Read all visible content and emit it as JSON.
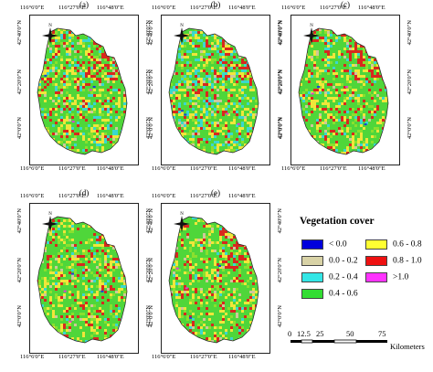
{
  "panels": [
    {
      "id": "a",
      "label": "(a)",
      "top_ticks": [
        "116°6'0\"E",
        "116°27'0\"E",
        "116°48'0\"E"
      ],
      "bottom_ticks": [
        "116°6'0\"E",
        "116°27'0\"E",
        "116°48'0\"E"
      ],
      "left_ticks": [
        "42°40'0\"N",
        "42°20'0\"N",
        "42°0'0\"N"
      ],
      "right_ticks": [
        "42°40'0\"N",
        "42°20'0\"N",
        "42°0'0\"N"
      ]
    },
    {
      "id": "b",
      "label": "(b)",
      "top_ticks": [
        "116°6'0\"E",
        "116°27'0\"E",
        "116°48'0\"E"
      ],
      "bottom_ticks": [
        "116°6'0\"E",
        "116°27'0\"E",
        "116°48'0\"E"
      ],
      "left_ticks": [
        "42°40'0\"N",
        "42°20'0\"N",
        "42°0'0\"N"
      ],
      "right_ticks": [
        "42°40'0\"N",
        "42°20'0\"N",
        "42°0'0\"N"
      ]
    },
    {
      "id": "c",
      "label": "(c)",
      "top_ticks": [
        "116°6'0\"E",
        "116°27'0\"E",
        "116°48'0\"E"
      ],
      "bottom_ticks": [
        "116°6'0\"E",
        "116°27'0\"E",
        "116°48'0\"E"
      ],
      "left_ticks": [
        "42°40'0\"N",
        "42°20'0\"N",
        "42°0'0\"N"
      ],
      "right_ticks": [
        "42°40'0\"N",
        "42°20'0\"N",
        "42°0'0\"N"
      ]
    },
    {
      "id": "d",
      "label": "(d)",
      "top_ticks": [
        "116°6'0\"E",
        "116°27'0\"E",
        "116°48'0\"E"
      ],
      "bottom_ticks": [
        "116°6'0\"E",
        "116°27'0\"E",
        "116°48'0\"E"
      ],
      "left_ticks": [
        "42°40'0\"N",
        "42°20'0\"N",
        "42°0'0\"N"
      ],
      "right_ticks": [
        "42°40'0\"N",
        "42°20'0\"N",
        "42°0'0\"N"
      ]
    },
    {
      "id": "e",
      "label": "(e)",
      "top_ticks": [
        "116°6'0\"E",
        "116°27'0\"E",
        "116°48'0\"E"
      ],
      "bottom_ticks": [
        "116°6'0\"E",
        "116°27'0\"E",
        "116°48'0\"E"
      ],
      "left_ticks": [
        "42°40'0\"N",
        "42°20'0\"N",
        "42°0'0\"N"
      ],
      "right_ticks": [
        "42°40'0\"N",
        "42°20'0\"N",
        "42°0'0\"N"
      ]
    }
  ],
  "north_arrow": {
    "label": "N",
    "icon": "compass-rose-icon"
  },
  "legend": {
    "title": "Vegetation cover",
    "items": [
      {
        "label": "< 0.0",
        "color": "#0000dd"
      },
      {
        "label": "0.6 - 0.8",
        "color": "#ffff33"
      },
      {
        "label": "0.0 - 0.2",
        "color": "#d8d2a6"
      },
      {
        "label": "0.8 - 1.0",
        "color": "#ee1111"
      },
      {
        "label": "0.2 - 0.4",
        "color": "#33e6e6"
      },
      {
        "label": ">1.0",
        "color": "#ff33ff"
      },
      {
        "label": "0.4 - 0.6",
        "color": "#33dd33"
      }
    ]
  },
  "scale_bar": {
    "ticks": [
      "0",
      "12.5",
      "25",
      "50",
      "75"
    ],
    "unit": "Kilometers"
  },
  "map_colors": {
    "green": "#4fd63a",
    "lime": "#8ae02e",
    "yellow": "#f0e63a",
    "red": "#d8281e",
    "cyan": "#3ad7cf",
    "tan": "#cfc79a",
    "blue": "#1a3fd6",
    "magenta": "#e23ad8"
  }
}
